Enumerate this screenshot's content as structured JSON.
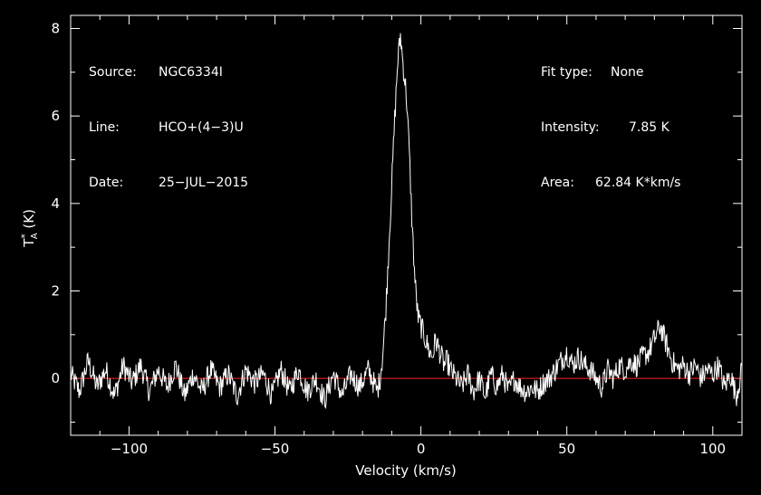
{
  "info_left": [
    {
      "label": "Source:",
      "value": "NGC6334I"
    },
    {
      "label": "Line:",
      "value": "HCO+(4−3)U"
    },
    {
      "label": "Date:",
      "value": "25−JUL−2015"
    }
  ],
  "info_right": [
    {
      "label": "Fit type:",
      "value": "None"
    },
    {
      "label": "Intensity:",
      "value": "7.85 K"
    },
    {
      "label": "Area:",
      "value": "62.84 K*km/s"
    }
  ],
  "chart_data": {
    "type": "line",
    "xlabel": "Velocity (km/s)",
    "ylabel": "T*A (K)",
    "xlim": [
      -120,
      110
    ],
    "ylim": [
      -1.3,
      8.3
    ],
    "xticks": [
      -100,
      -50,
      0,
      50,
      100
    ],
    "xtick_labels": [
      "−100",
      "−50",
      "0",
      "50",
      "100"
    ],
    "yticks": [
      0,
      2,
      4,
      6,
      8
    ],
    "ytick_labels": [
      "0",
      "2",
      "4",
      "6",
      "8"
    ],
    "grid": false,
    "colors": {
      "background": "#000000",
      "spectrum": "#ffffff",
      "baseline": "#ff2020",
      "axes": "#ffffff"
    },
    "baseline": {
      "y": 0
    },
    "series": [
      {
        "x": [
          -120,
          -117,
          -114,
          -111,
          -108,
          -105,
          -102,
          -99,
          -96,
          -93,
          -90,
          -87,
          -84,
          -81,
          -78,
          -75,
          -72,
          -69,
          -66,
          -63,
          -60,
          -57,
          -54,
          -51,
          -48,
          -45,
          -42,
          -39,
          -36,
          -33,
          -30,
          -27,
          -24,
          -21,
          -18,
          -15,
          -14,
          -13,
          -12,
          -11,
          -10,
          -9,
          -8,
          -7,
          -6,
          -5,
          -4,
          -3,
          -2,
          -1,
          0,
          1,
          2,
          3,
          4,
          5,
          6,
          7,
          8,
          9,
          10,
          12,
          14,
          16,
          18,
          20,
          22,
          24,
          26,
          28,
          30,
          32,
          34,
          36,
          38,
          40,
          42,
          44,
          46,
          48,
          50,
          52,
          54,
          56,
          58,
          60,
          62,
          64,
          66,
          68,
          70,
          72,
          74,
          76,
          78,
          80,
          82,
          84,
          86,
          88,
          90,
          92,
          94,
          96,
          98,
          100,
          102,
          104,
          106,
          108,
          110
        ],
        "values": [
          0.1,
          -0.3,
          0.4,
          -0.2,
          0.2,
          -0.4,
          0.3,
          -0.1,
          0.3,
          -0.3,
          0.2,
          -0.2,
          0.3,
          -0.4,
          0.1,
          -0.3,
          0.2,
          -0.2,
          0.1,
          -0.4,
          0.2,
          -0.1,
          0.1,
          -0.4,
          0.2,
          -0.3,
          0.2,
          -0.3,
          0.0,
          -0.5,
          0.1,
          -0.4,
          0.1,
          -0.2,
          0.2,
          -0.3,
          0.0,
          0.6,
          1.6,
          3.0,
          4.4,
          5.9,
          7.2,
          7.85,
          7.1,
          6.5,
          5.2,
          3.5,
          2.2,
          1.4,
          1.2,
          1.0,
          0.8,
          0.6,
          0.5,
          0.9,
          0.7,
          0.5,
          0.3,
          0.4,
          0.2,
          0.0,
          -0.2,
          0.1,
          -0.3,
          0.0,
          -0.4,
          0.1,
          -0.2,
          0.1,
          -0.3,
          0.0,
          -0.2,
          -0.3,
          -0.2,
          -0.3,
          -0.1,
          0.0,
          0.2,
          0.4,
          0.6,
          0.3,
          0.5,
          0.3,
          0.2,
          0.0,
          -0.2,
          0.2,
          0.0,
          0.3,
          0.2,
          0.4,
          0.3,
          0.5,
          0.6,
          0.9,
          1.2,
          0.8,
          0.4,
          0.2,
          0.3,
          0.1,
          0.3,
          0.0,
          0.2,
          0.1,
          0.3,
          -0.2,
          0.1,
          -0.4,
          0.2
        ]
      }
    ]
  }
}
